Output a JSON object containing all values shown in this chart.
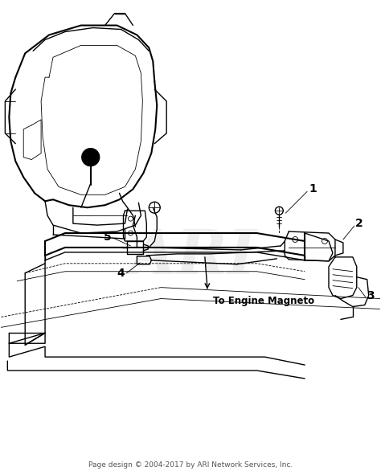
{
  "background_color": "#ffffff",
  "fig_width": 4.74,
  "fig_height": 5.91,
  "dpi": 100,
  "footer_text": "Page design © 2004-2017 by ARI Network Services, Inc.",
  "footer_fontsize": 6.5,
  "label_1": "1",
  "label_2": "2",
  "label_3": "3",
  "label_4": "4",
  "label_5": "5",
  "magneto_text": "To Engine Magneto",
  "watermark_text": "ARI",
  "line_color": "#000000",
  "watermark_color": "#cccccc",
  "lw_main": 1.0,
  "lw_thick": 1.5,
  "lw_thin": 0.6
}
